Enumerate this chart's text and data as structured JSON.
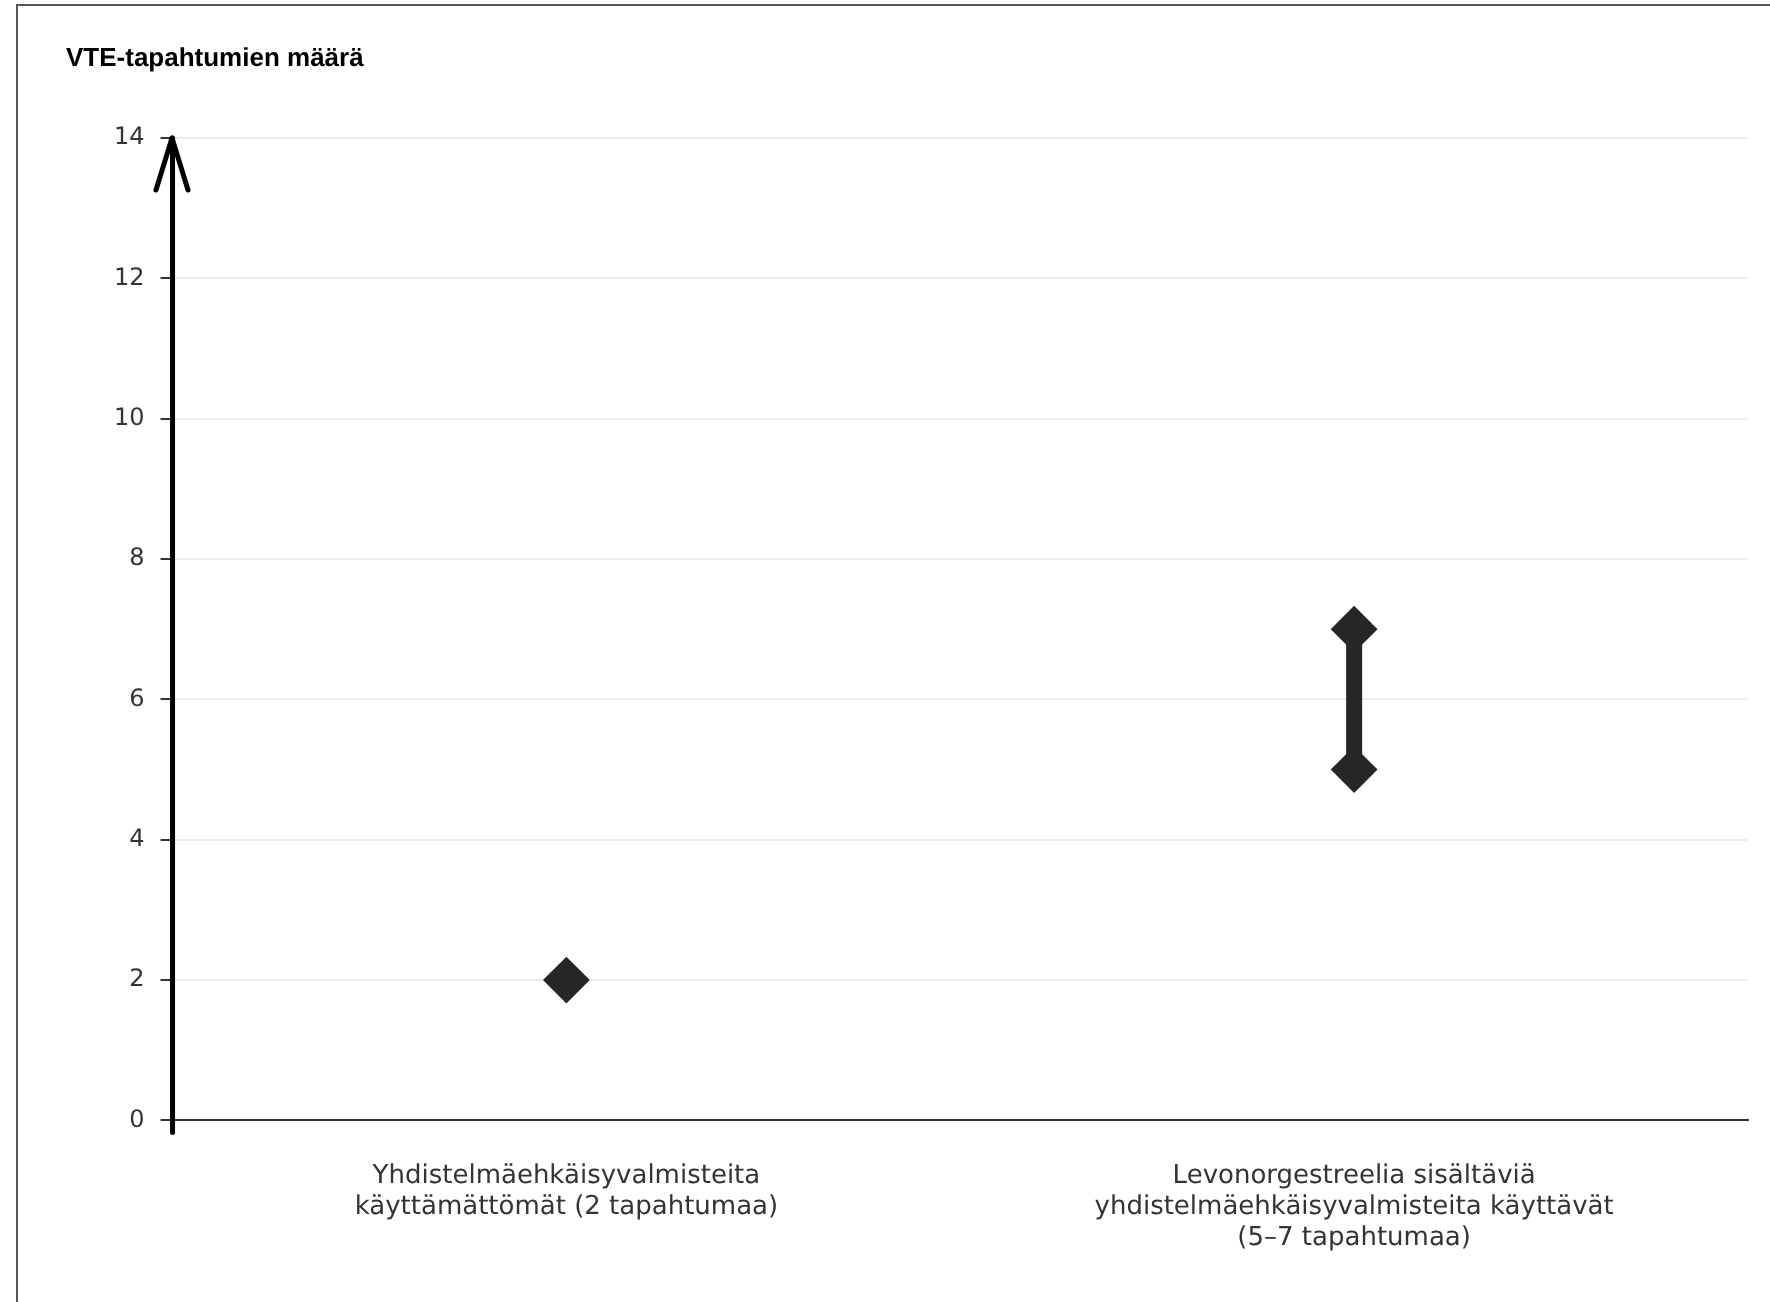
{
  "chart_data": {
    "type": "scatter",
    "ylabel": "VTE-tapahtumien määrä",
    "categories": [
      "Yhdistelmäehkäisyvalmisteita käyttämättömät (2 tapahtumaa)",
      "Levonorgestreelia sisältäviä yhdistelmäehkäisyvalmisteita käyttävät (5–7 tapahtumaa)"
    ],
    "series": [
      {
        "type": "line",
        "color": "#262626",
        "x": [
          "Levonorgestreelia sisältäviä yhdistelmäehkäisyvalmisteita käyttävät (5–7 tapahtumaa)",
          "Levonorgestreelia sisältäviä yhdistelmäehkäisyvalmisteita käyttävät (5–7 tapahtumaa)"
        ],
        "values": [
          5,
          7
        ],
        "marker": "none"
      },
      {
        "type": "scatter",
        "color": "#262626",
        "x": [
          "Yhdistelmäehkäisyvalmisteita käyttämättömät (2 tapahtumaa)",
          "Levonorgestreelia sisältäviä yhdistelmäehkäisyvalmisteita käyttävät (5–7 tapahtumaa)",
          "Levonorgestreelia sisältäviä yhdistelmäehkäisyvalmisteita käyttävät (5–7 tapahtumaa)"
        ],
        "values": [
          2,
          5,
          7
        ],
        "marker": "diamond"
      }
    ],
    "ylim": [
      0,
      14
    ],
    "yticks": [
      0,
      2,
      4,
      6,
      8,
      10,
      12,
      14
    ],
    "grid": "y",
    "legend": false
  }
}
